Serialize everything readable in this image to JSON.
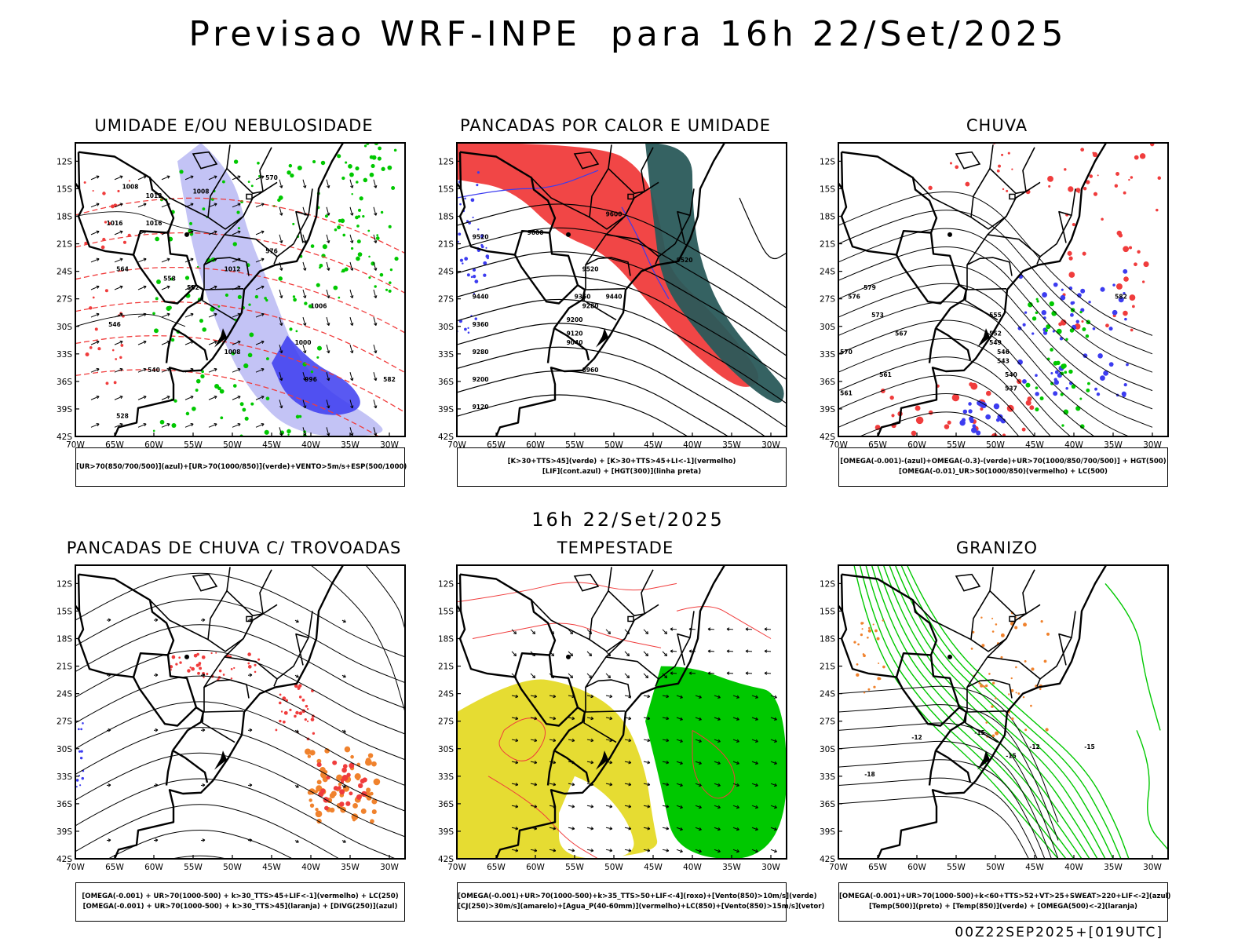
{
  "header": {
    "title": "Previsao WRF-INPE  para 16h 22/Set/2025",
    "mid_title": "16h 22/Set/2025",
    "footer": "00Z22SEP2025+[019UTC]"
  },
  "axes": {
    "lon_labels": [
      "70W",
      "65W",
      "60W",
      "55W",
      "50W",
      "45W",
      "40W",
      "35W",
      "30W"
    ],
    "lat_labels": [
      "12S",
      "15S",
      "18S",
      "21S",
      "24S",
      "27S",
      "30S",
      "33S",
      "36S",
      "39S",
      "42S"
    ],
    "lon_range": [
      -70,
      -28
    ],
    "lat_range": [
      -42,
      -10
    ]
  },
  "panels": [
    {
      "title": "UMIDADE E/OU NEBULOSIDADE",
      "legend": [
        "[UR>70(850/700/500)](azul)+[UR>70(1000/850)](verde)+VENTO>5m/s+ESP(500/1000)"
      ],
      "contour_labels": [
        "1008",
        "1012",
        "1016",
        "1008",
        "1012",
        "1016",
        "1006",
        "1000",
        "996",
        "1008",
        "570",
        "576",
        "564",
        "558",
        "552",
        "546",
        "540",
        "528",
        "582"
      ]
    },
    {
      "title": "PANCADAS POR CALOR E UMIDADE",
      "legend": [
        "[K>30+TTS>45](verde) + [K>30+TTS>45+LI<-1](vermelho)",
        "[LIF](cont.azul) + [HGT(300)](linha preta)"
      ],
      "contour_labels": [
        "9520",
        "9600",
        "9440",
        "9360",
        "9280",
        "9200",
        "9120",
        "9040",
        "8960",
        "9520",
        "9600",
        "9440",
        "9520",
        "9360",
        "9280",
        "9200",
        "9120"
      ]
    },
    {
      "title": "CHUVA",
      "legend": [
        "[OMEGA(-0.001)-(azul)+OMEGA(-0.3)-(verde)+UR>70(1000/850/700/500)] + HGT(500)",
        "[OMEGA(-0.01)_UR>50(1000/850)(vermelho) + LC(500)"
      ],
      "contour_labels": [
        "579",
        "576",
        "573",
        "567",
        "561",
        "555",
        "552",
        "549",
        "546",
        "543",
        "540",
        "537",
        "570",
        "582",
        "561"
      ]
    },
    {
      "title": "PANCADAS DE CHUVA C/ TROVOADAS",
      "legend": [
        "[OMEGA(-0.001) + UR>70(1000-500) + k>30_TTS>45+LIF<-1](vermelho) + LC(250)",
        "[OMEGA(-0.001) + UR>70(1000-500) + k>30_TTS>45](laranja) + [DIVG(250)](azul)"
      ],
      "contour_labels": []
    },
    {
      "title": "TEMPESTADE",
      "legend": [
        "[OMEGA(-0.001)+UR>70(1000-500)+k>35_TTS>50+LIF<-4](roxo)+[Vento(850)>10m/s](verde)",
        "[CJ(250)>30m/s](amarelo)+[Agua_P(40-60mm)](vermelho)+LC(850)+[Vento(850)>15m/s](vetor)"
      ],
      "contour_labels": []
    },
    {
      "title": "GRANIZO",
      "legend": [
        "[OMEGA(-0.001)+UR>70(1000-500)+k<60+TTS>52+VT>25+SWEAT>220+LIF<-2](azul)",
        "[Temp(500)](preto) + [Temp(850)](verde) + [OMEGA(500)<-2](laranja)"
      ],
      "contour_labels": [
        "-12",
        "-15",
        "-18",
        "-15",
        "-12",
        "-15"
      ]
    }
  ],
  "colors": {
    "blue_light": "#bcbcf4",
    "blue": "#3c3cf0",
    "green": "#00c800",
    "red": "#f03c3c",
    "dark_teal": "#2a5a5a",
    "yellow": "#e6dc32",
    "orange": "#f0822d"
  }
}
